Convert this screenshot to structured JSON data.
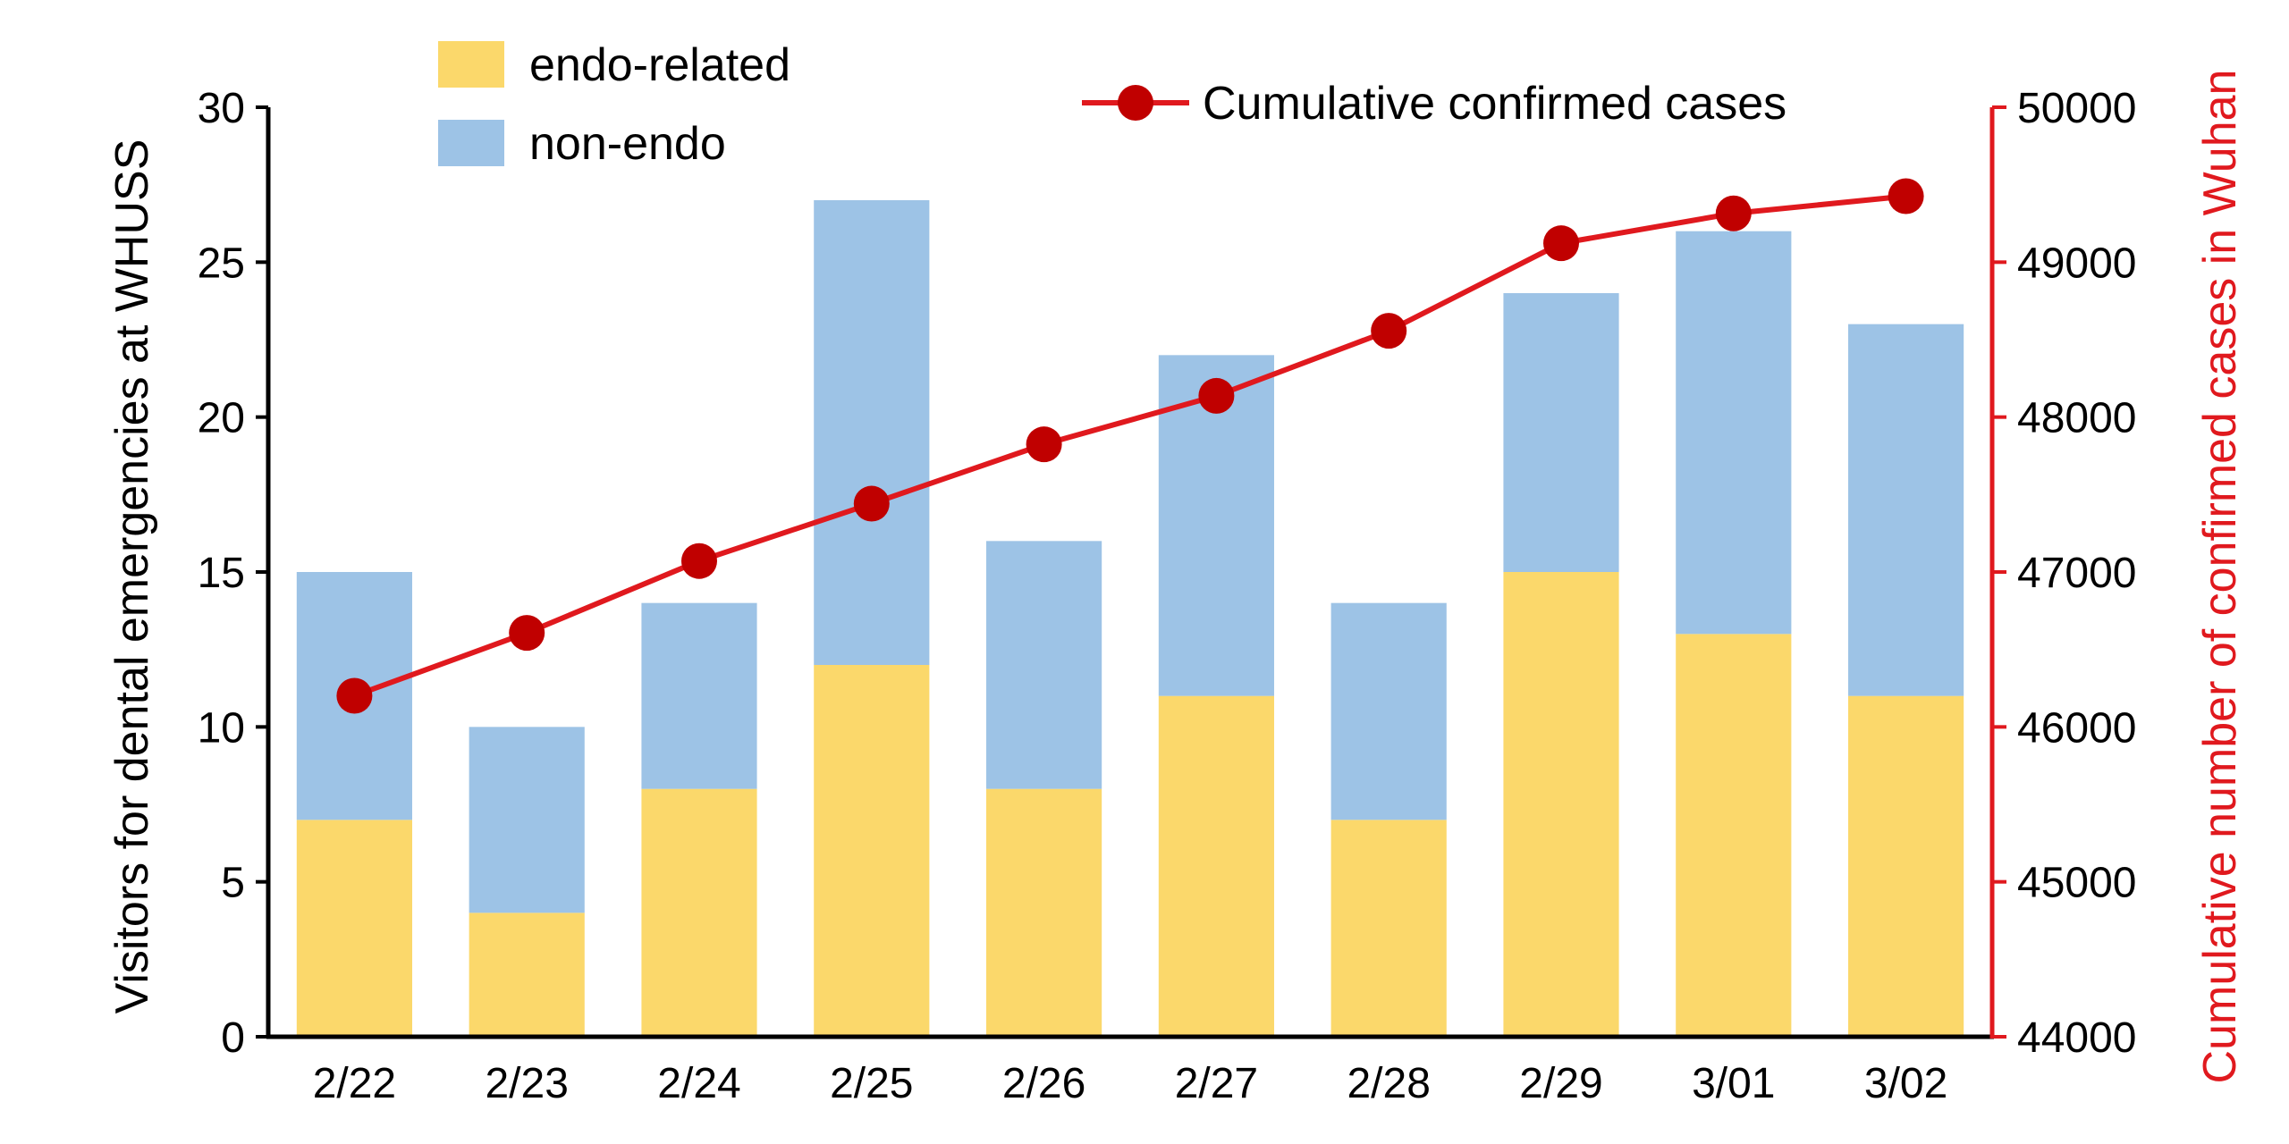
{
  "chart_data": {
    "type": "bar",
    "stacked": true,
    "categories": [
      "2/22",
      "2/23",
      "2/24",
      "2/25",
      "2/26",
      "2/27",
      "2/28",
      "2/29",
      "3/01",
      "3/02"
    ],
    "series": [
      {
        "name": "endo-related",
        "kind": "bar",
        "axis": "left",
        "color": "#FBD86B",
        "values": [
          7,
          4,
          8,
          12,
          8,
          11,
          7,
          15,
          13,
          11
        ]
      },
      {
        "name": "non-endo",
        "kind": "bar",
        "axis": "left",
        "color": "#9DC3E6",
        "values": [
          8,
          6,
          6,
          15,
          8,
          11,
          7,
          9,
          13,
          12
        ]
      },
      {
        "name": "Cumulative confirmed cases",
        "kind": "line",
        "axis": "right",
        "color": "#E0191E",
        "marker_color": "#C00000",
        "values": [
          46201,
          46607,
          47071,
          47441,
          47824,
          48137,
          48557,
          49122,
          49315,
          49426
        ]
      }
    ],
    "y_left": {
      "label": "Visitors for dental emergencies at WHUSS",
      "ylim": [
        0,
        30
      ],
      "ticks": [
        "0",
        "5",
        "10",
        "15",
        "20",
        "25",
        "30"
      ],
      "color": "#000000"
    },
    "y_right": {
      "label": "Cumulative number of confirmed cases in Wuhan",
      "ylim": [
        44000,
        50000
      ],
      "ticks": [
        "44000",
        "45000",
        "46000",
        "47000",
        "48000",
        "49000",
        "50000"
      ],
      "color": "#E0191E"
    },
    "legend": {
      "bars_position": "top-left",
      "line_position": "top-center"
    },
    "grid": false
  }
}
